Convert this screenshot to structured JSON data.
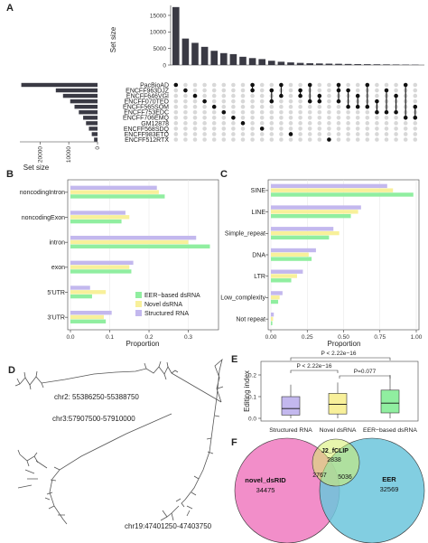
{
  "panel_labels": {
    "a": "A",
    "b": "B",
    "c": "C",
    "d": "D",
    "e": "E",
    "f": "F"
  },
  "colors": {
    "upset_bar": "#3a3a44",
    "dot_on": "#111111",
    "dot_off": "#d8d8d8",
    "eer": "#90eea0",
    "novel": "#f8f09a",
    "structured": "#c3b8ee",
    "venn_novel": "#f07ac0",
    "venn_eer": "#6cc6dc"
  },
  "chart_data": [
    {
      "type": "bar",
      "panel": "A-intersections",
      "ylabel": "Set size",
      "ylim": [
        0,
        18000
      ],
      "yticks": [
        "0",
        "5000",
        "10000",
        "15000"
      ],
      "values": [
        17500,
        8000,
        6700,
        5500,
        4300,
        3600,
        3300,
        2500,
        2100,
        1800,
        1300,
        1000,
        800,
        650,
        550,
        480,
        420,
        380,
        320,
        280,
        250,
        220,
        190,
        160,
        130,
        100
      ]
    },
    {
      "type": "bar",
      "panel": "A-set-sizes",
      "xlabel": "Set size",
      "xticks": [
        "20000",
        "10000",
        "0"
      ],
      "xlim": [
        0,
        27000
      ],
      "categories": [
        "PacBioAD",
        "ENCFF963DJZ",
        "ENCFF646VGI",
        "ENCFF070TEO",
        "ENCFF565SOM",
        "ENCFF753EDC",
        "ENCFF706EMQ",
        "GM12878",
        "ENCFF568SDQ",
        "ENCFF983ETQ",
        "ENCFF512RTX"
      ],
      "values": [
        26500,
        14500,
        12000,
        9500,
        8000,
        6500,
        5000,
        4000,
        3000,
        2000,
        1200
      ],
      "intersections": [
        [
          0
        ],
        [
          1
        ],
        [
          2
        ],
        [
          3
        ],
        [
          4
        ],
        [
          5
        ],
        [
          6
        ],
        [
          7
        ],
        [
          0,
          1
        ],
        [
          8
        ],
        [
          1,
          3
        ],
        [
          0,
          2
        ],
        [
          9
        ],
        [
          1,
          2
        ],
        [
          0,
          3
        ],
        [
          2,
          3
        ],
        [
          10
        ],
        [
          0,
          1,
          3
        ],
        [
          1,
          4
        ],
        [
          2,
          4
        ],
        [
          0,
          4
        ],
        [
          3,
          5
        ],
        [
          1,
          5
        ],
        [
          2,
          5
        ],
        [
          0,
          6
        ],
        [
          4,
          6
        ]
      ]
    },
    {
      "type": "bar",
      "panel": "B",
      "xlabel": "Proportion",
      "xlim": [
        0,
        0.37
      ],
      "xticks": [
        "0.0",
        "0.1",
        "0.2",
        "0.3"
      ],
      "categories": [
        "noncodingIntron",
        "noncodingExon",
        "intron",
        "exon",
        "5'UTR",
        "3'UTR"
      ],
      "series": [
        {
          "name": "Structured RNA",
          "values": [
            0.22,
            0.14,
            0.32,
            0.16,
            0.05,
            0.105
          ]
        },
        {
          "name": "Novel dsRNA",
          "values": [
            0.225,
            0.15,
            0.3,
            0.15,
            0.09,
            0.085
          ]
        },
        {
          "name": "EER−based dsRNA",
          "values": [
            0.24,
            0.13,
            0.355,
            0.155,
            0.055,
            0.09
          ]
        }
      ]
    },
    {
      "type": "bar",
      "panel": "C",
      "xlabel": "Proportion",
      "xlim": [
        0,
        1.0
      ],
      "xticks": [
        "0.00",
        "0.25",
        "0.50",
        "0.75",
        "1.00"
      ],
      "categories": [
        "SINE",
        "LINE",
        "Simple_repeat",
        "DNA",
        "LTR",
        "Low_complexity",
        "Not repeat"
      ],
      "series": [
        {
          "name": "Structured RNA",
          "values": [
            0.8,
            0.62,
            0.43,
            0.31,
            0.22,
            0.08,
            0.02
          ]
        },
        {
          "name": "Novel dsRNA",
          "values": [
            0.84,
            0.6,
            0.47,
            0.26,
            0.18,
            0.06,
            0.015
          ]
        },
        {
          "name": "EER−based dsRNA",
          "values": [
            0.98,
            0.55,
            0.4,
            0.28,
            0.14,
            0.05,
            0.01
          ]
        }
      ]
    },
    {
      "type": "box",
      "panel": "E",
      "ylabel": "Editing index",
      "ylim": [
        0,
        0.25
      ],
      "yticks": [
        "0.0",
        "0.1",
        "0.2"
      ],
      "categories": [
        "Structured RNA",
        "Novel dsRNA",
        "EER−based dsRNA"
      ],
      "boxes": [
        {
          "min": 0.0,
          "q1": 0.015,
          "median": 0.045,
          "q3": 0.1,
          "max": 0.155
        },
        {
          "min": 0.0,
          "q1": 0.02,
          "median": 0.065,
          "q3": 0.115,
          "max": 0.165
        },
        {
          "min": 0.0,
          "q1": 0.025,
          "median": 0.07,
          "q3": 0.13,
          "max": 0.2
        }
      ],
      "annotations": [
        "P < 2.22e−16",
        "P < 2.22e−16",
        "P=0.077"
      ]
    }
  ],
  "panel_d": {
    "regions": [
      "chr2: 55386250-55388750",
      "chr3:57907500-57910000",
      "chr19:47401250-47403750"
    ]
  },
  "panel_f": {
    "sets": [
      "novel_dsRID",
      "J2_fCLIP",
      "EER"
    ],
    "counts": {
      "novel_only": "34475",
      "j2_only": "2838",
      "novel_j2": "2767",
      "j2_eer": "5036",
      "eer_only": "32569"
    }
  }
}
